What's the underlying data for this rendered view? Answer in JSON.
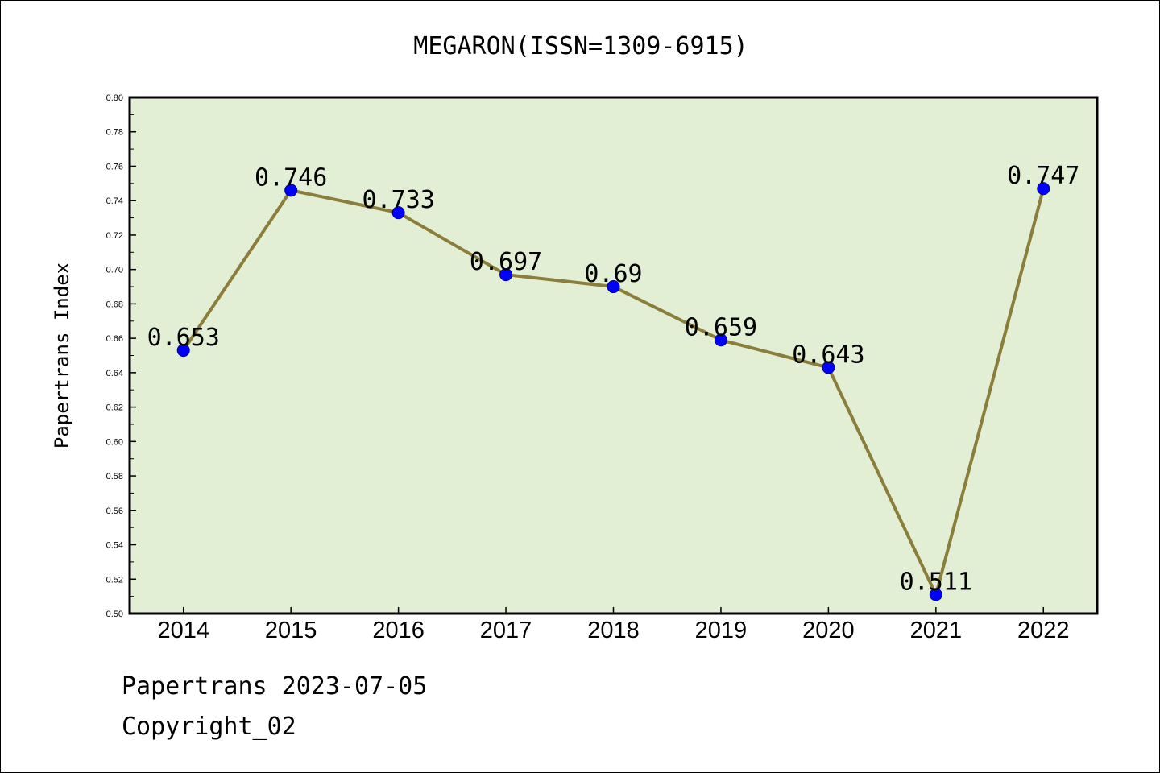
{
  "chart_data": {
    "type": "line",
    "title": "MEGARON(ISSN=1309-6915)",
    "xlabel": "",
    "ylabel": "Papertrans Index",
    "ylim": [
      0.5,
      0.8
    ],
    "yticks": [
      "0.50",
      "0.52",
      "0.54",
      "0.56",
      "0.58",
      "0.60",
      "0.62",
      "0.64",
      "0.66",
      "0.68",
      "0.70",
      "0.72",
      "0.74",
      "0.76",
      "0.78",
      "0.80"
    ],
    "categories": [
      "2014",
      "2015",
      "2016",
      "2017",
      "2018",
      "2019",
      "2020",
      "2021",
      "2022"
    ],
    "series": [
      {
        "values": [
          0.653,
          0.746,
          0.733,
          0.697,
          0.69,
          0.659,
          0.643,
          0.511,
          0.747
        ],
        "labels": [
          "0.653",
          "0.746",
          "0.733",
          "0.697",
          "0.69",
          "0.659",
          "0.643",
          "0.511",
          "0.747"
        ]
      }
    ],
    "grid": false,
    "colors": {
      "plot_background": "#e2efd5",
      "line": "#8b7d3a",
      "marker": "#0000ff"
    }
  },
  "footer": {
    "line1": "Papertrans 2023-07-05",
    "line2": "Copyright_02"
  }
}
